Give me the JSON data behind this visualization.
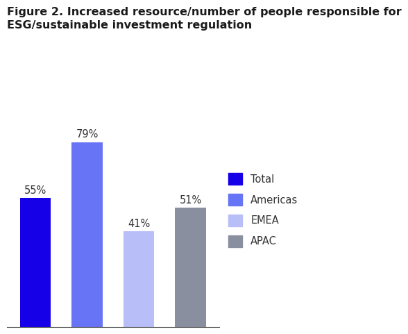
{
  "title_line1": "Figure 2. Increased resource/number of people responsible for",
  "title_line2": "ESG/sustainable investment regulation",
  "categories": [
    "Total",
    "Americas",
    "EMEA",
    "APAC"
  ],
  "values": [
    55,
    79,
    41,
    51
  ],
  "labels": [
    "55%",
    "79%",
    "41%",
    "51%"
  ],
  "bar_colors": [
    "#1500e8",
    "#6674f5",
    "#b8bef8",
    "#8a8fa0"
  ],
  "legend_labels": [
    "Total",
    "Americas",
    "EMEA",
    "APAC"
  ],
  "legend_colors": [
    "#1500e8",
    "#6674f5",
    "#b8bef8",
    "#8a8fa0"
  ],
  "ylim": [
    0,
    100
  ],
  "background_color": "#ffffff",
  "title_fontsize": 11.5,
  "label_fontsize": 10.5,
  "legend_fontsize": 10.5
}
